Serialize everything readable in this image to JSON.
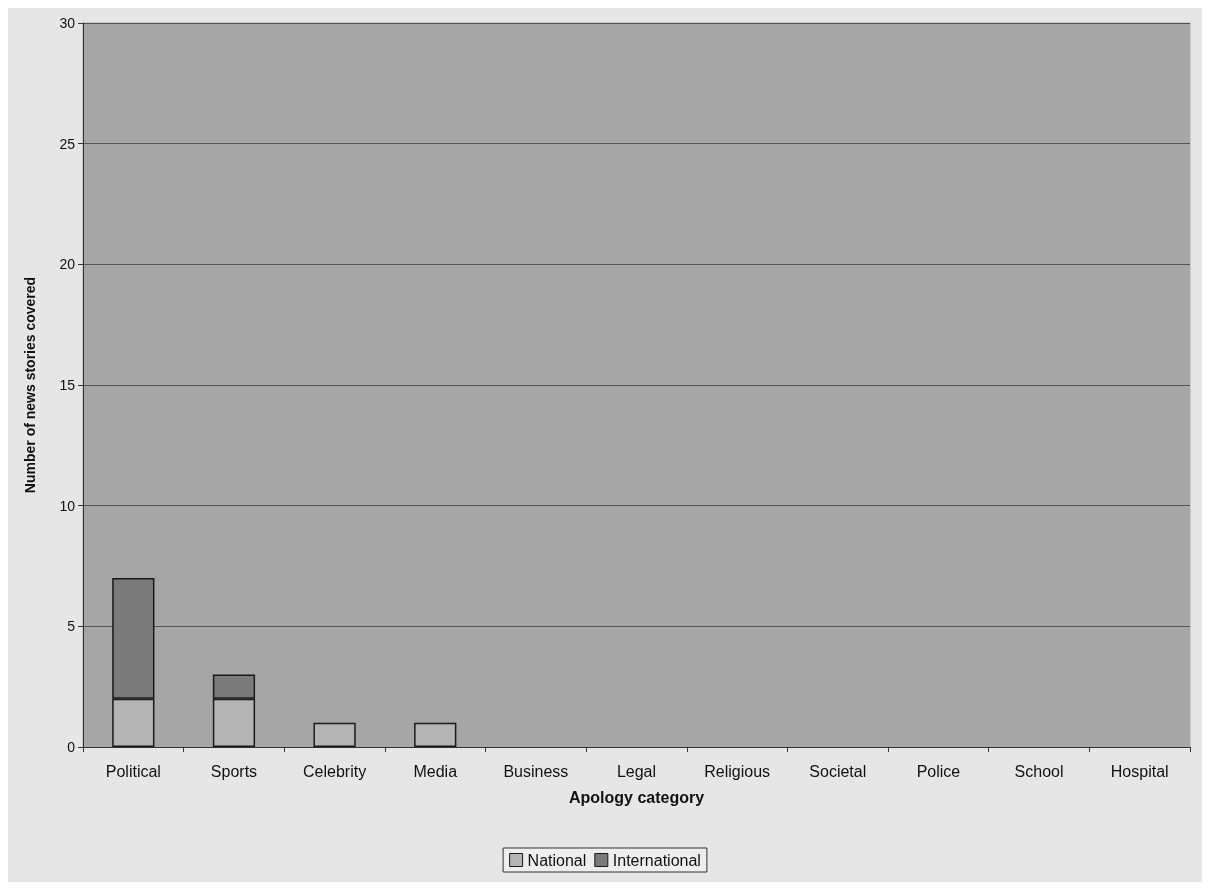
{
  "chart_data": {
    "type": "bar",
    "xlabel": "Apology category",
    "ylabel": "Number of news stories covered",
    "categories": [
      "Political",
      "Sports",
      "Celebrity",
      "Media",
      "Business",
      "Legal",
      "Religious",
      "Societal",
      "Police",
      "School",
      "Hospital"
    ],
    "series": [
      {
        "name": "National",
        "color": "#b4b4b4",
        "values": [
          2,
          2,
          1,
          1,
          0,
          0,
          0,
          0,
          0,
          0,
          0
        ]
      },
      {
        "name": "International",
        "color": "#7a7a7a",
        "values": [
          5,
          1,
          0,
          0,
          0,
          0,
          0,
          0,
          0,
          0,
          0
        ]
      }
    ],
    "stacked": true,
    "ylim": [
      0,
      30
    ],
    "yticks": [
      0,
      5,
      10,
      15,
      20,
      25,
      30
    ],
    "grid": "y",
    "legend": "bottom"
  }
}
